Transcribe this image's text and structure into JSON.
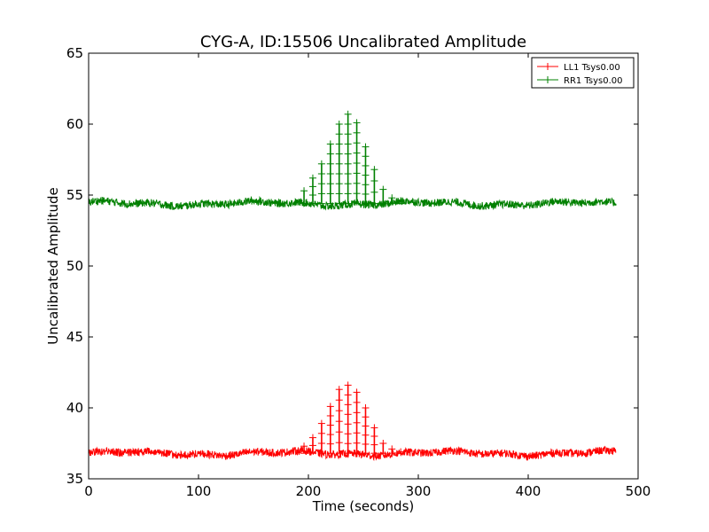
{
  "chart_data": {
    "type": "line",
    "title": "CYG-A, ID:15506 Uncalibrated Amplitude",
    "xlabel": "Time (seconds)",
    "ylabel": "Uncalibrated Amplitude",
    "xlim": [
      0,
      500
    ],
    "ylim": [
      35,
      65
    ],
    "xticks": [
      0,
      100,
      200,
      300,
      400,
      500
    ],
    "yticks": [
      35,
      40,
      45,
      50,
      55,
      60,
      65
    ],
    "grid": false,
    "legend_position": "top-right",
    "x_range": [
      0,
      480
    ],
    "series": [
      {
        "name": "LL1 Tsys0.00",
        "color": "#ff0000",
        "baseline": 36.8,
        "peak_times": [
          196,
          204,
          212,
          220,
          228,
          236,
          244,
          252,
          260,
          268,
          276,
          284
        ],
        "peak_values": [
          37.3,
          37.9,
          38.9,
          40.1,
          41.3,
          41.6,
          41.1,
          40.0,
          38.6,
          37.5,
          37.1,
          36.9
        ]
      },
      {
        "name": "RR1 Tsys0.00",
        "color": "#008000",
        "baseline": 54.4,
        "peak_times": [
          196,
          204,
          212,
          220,
          228,
          236,
          244,
          252,
          260,
          268,
          276,
          284
        ],
        "peak_values": [
          55.3,
          56.2,
          57.2,
          58.6,
          60.0,
          60.7,
          60.1,
          58.4,
          56.8,
          55.4,
          54.8,
          54.6
        ]
      }
    ]
  }
}
